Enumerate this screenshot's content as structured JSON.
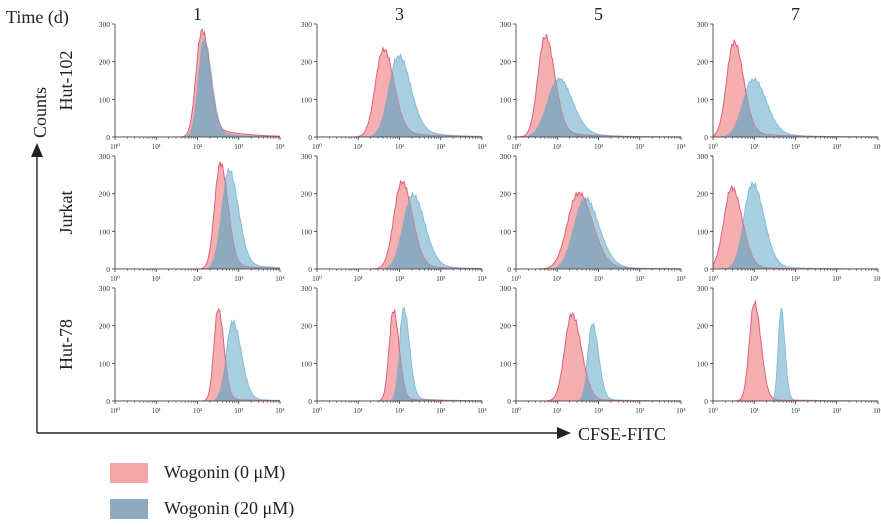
{
  "figure": {
    "time_label": "Time (d)",
    "y_title": "Counts",
    "x_title": "CFSE-FITC"
  },
  "colors": {
    "wogonin_0": "#f4a6a8",
    "wogonin_0_line": "#e0607a",
    "wogonin_20": "#a8cfe0",
    "wogonin_20_line": "#86bcd8",
    "overlap": "#8fa9bf",
    "axis": "#333333"
  },
  "chart_data": {
    "type": "area",
    "description_note": "Flow cytometry CFSE dilution histograms; grid of cell lines (rows) by day (columns). Peak positions given in log10 units of CFSE-FITC.",
    "columns": [
      "1",
      "3",
      "5",
      "7"
    ],
    "rows": [
      "Hut-102",
      "Jurkat",
      "Hut-78"
    ],
    "xlabel": "CFSE-FITC",
    "ylabel": "Counts",
    "xlim_log10": [
      0,
      4
    ],
    "x_tick_labels": [
      "10⁰",
      "10¹",
      "10²",
      "10³",
      "10⁴"
    ],
    "ylim": [
      0,
      300
    ],
    "y_tick_labels": [
      "0",
      "100",
      "200",
      "300"
    ],
    "legend": [
      {
        "name": "Wogonin (0 μM)",
        "color": "#f4a6a8"
      },
      {
        "name": "Wogonin (20 μM)",
        "color": "#8fa9bf"
      }
    ],
    "panels": [
      {
        "row": "Hut-102",
        "day": "1",
        "series": [
          {
            "name": "Wogonin (0 μM)",
            "peak_log10": 2.1,
            "peak_count": 280,
            "width": 0.16,
            "tail": 0.12
          },
          {
            "name": "Wogonin (20 μM)",
            "peak_log10": 2.15,
            "peak_count": 260,
            "width": 0.16,
            "tail": 0.06
          }
        ]
      },
      {
        "row": "Hut-102",
        "day": "3",
        "series": [
          {
            "name": "Wogonin (0 μM)",
            "peak_log10": 1.6,
            "peak_count": 230,
            "width": 0.22,
            "tail": 0.1
          },
          {
            "name": "Wogonin (20 μM)",
            "peak_log10": 1.95,
            "peak_count": 210,
            "width": 0.26,
            "tail": 0.14
          }
        ]
      },
      {
        "row": "Hut-102",
        "day": "5",
        "series": [
          {
            "name": "Wogonin (0 μM)",
            "peak_log10": 0.7,
            "peak_count": 265,
            "width": 0.2,
            "tail": 0.08
          },
          {
            "name": "Wogonin (20 μM)",
            "peak_log10": 1.0,
            "peak_count": 150,
            "width": 0.3,
            "tail": 0.14
          }
        ]
      },
      {
        "row": "Hut-102",
        "day": "7",
        "series": [
          {
            "name": "Wogonin (0 μM)",
            "peak_log10": 0.5,
            "peak_count": 250,
            "width": 0.2,
            "tail": 0.08
          },
          {
            "name": "Wogonin (20 μM)",
            "peak_log10": 0.95,
            "peak_count": 150,
            "width": 0.28,
            "tail": 0.12
          }
        ]
      },
      {
        "row": "Jurkat",
        "day": "1",
        "series": [
          {
            "name": "Wogonin (0 μM)",
            "peak_log10": 2.55,
            "peak_count": 280,
            "width": 0.16,
            "tail": 0.05
          },
          {
            "name": "Wogonin (20 μM)",
            "peak_log10": 2.75,
            "peak_count": 260,
            "width": 0.2,
            "tail": 0.08
          }
        ]
      },
      {
        "row": "Jurkat",
        "day": "3",
        "series": [
          {
            "name": "Wogonin (0 μM)",
            "peak_log10": 2.05,
            "peak_count": 230,
            "width": 0.22,
            "tail": 0.06
          },
          {
            "name": "Wogonin (20 μM)",
            "peak_log10": 2.3,
            "peak_count": 195,
            "width": 0.26,
            "tail": 0.08
          }
        ]
      },
      {
        "row": "Jurkat",
        "day": "5",
        "series": [
          {
            "name": "Wogonin (0 μM)",
            "peak_log10": 1.5,
            "peak_count": 200,
            "width": 0.3,
            "tail": 0.06
          },
          {
            "name": "Wogonin (20 μM)",
            "peak_log10": 1.65,
            "peak_count": 185,
            "width": 0.3,
            "tail": 0.08
          }
        ]
      },
      {
        "row": "Jurkat",
        "day": "7",
        "series": [
          {
            "name": "Wogonin (0 μM)",
            "peak_log10": 0.45,
            "peak_count": 215,
            "width": 0.22,
            "tail": 0.04
          },
          {
            "name": "Wogonin (20 μM)",
            "peak_log10": 0.95,
            "peak_count": 225,
            "width": 0.24,
            "tail": 0.06
          }
        ]
      },
      {
        "row": "Hut-78",
        "day": "1",
        "series": [
          {
            "name": "Wogonin (0 μM)",
            "peak_log10": 2.5,
            "peak_count": 245,
            "width": 0.12,
            "tail": 0.03
          },
          {
            "name": "Wogonin (20 μM)",
            "peak_log10": 2.85,
            "peak_count": 210,
            "width": 0.18,
            "tail": 0.04
          }
        ]
      },
      {
        "row": "Hut-78",
        "day": "3",
        "series": [
          {
            "name": "Wogonin (0 μM)",
            "peak_log10": 1.85,
            "peak_count": 240,
            "width": 0.12,
            "tail": 0.03
          },
          {
            "name": "Wogonin (20 μM)",
            "peak_log10": 2.1,
            "peak_count": 245,
            "width": 0.12,
            "tail": 0.04
          }
        ]
      },
      {
        "row": "Hut-78",
        "day": "5",
        "series": [
          {
            "name": "Wogonin (0 μM)",
            "peak_log10": 1.35,
            "peak_count": 230,
            "width": 0.2,
            "tail": 0.03
          },
          {
            "name": "Wogonin (20 μM)",
            "peak_log10": 1.85,
            "peak_count": 205,
            "width": 0.13,
            "tail": 0.03
          }
        ]
      },
      {
        "row": "Hut-78",
        "day": "7",
        "series": [
          {
            "name": "Wogonin (0 μM)",
            "peak_log10": 1.0,
            "peak_count": 260,
            "width": 0.14,
            "tail": 0.02
          },
          {
            "name": "Wogonin (20 μM)",
            "peak_log10": 1.65,
            "peak_count": 245,
            "width": 0.08,
            "tail": 0.02
          }
        ]
      }
    ]
  }
}
